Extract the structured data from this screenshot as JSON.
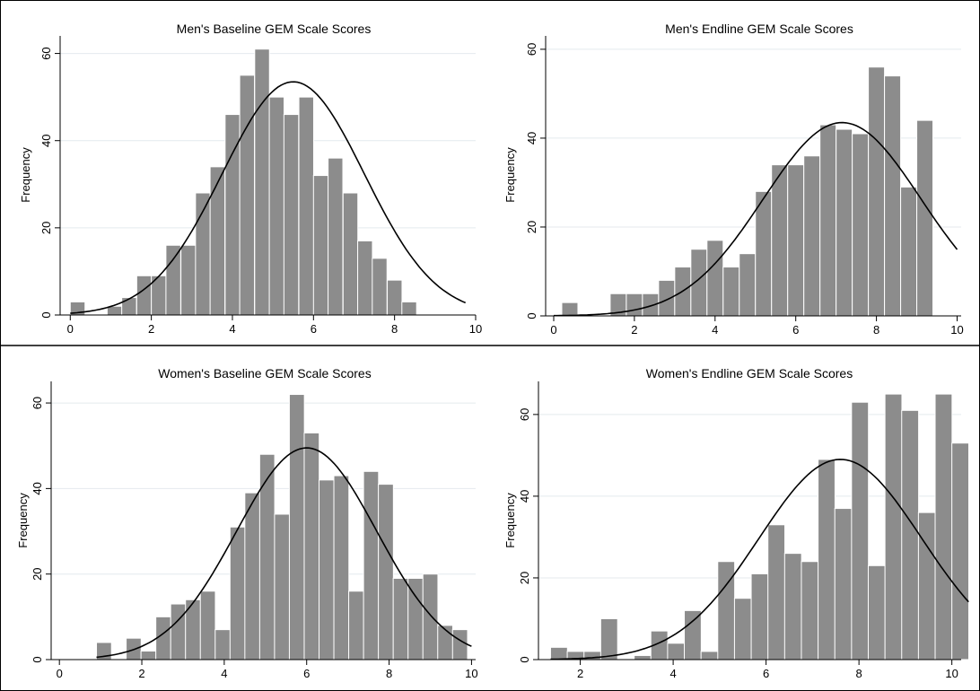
{
  "chart_data": [
    {
      "type": "bar",
      "title": "Men's Baseline GEM Scale Scores",
      "ylabel": "Frequency",
      "xlabel": "",
      "xlim": [
        -0.25,
        10
      ],
      "ylim": [
        0,
        63
      ],
      "xticks": [
        0,
        2,
        4,
        6,
        8,
        10
      ],
      "yticks": [
        0,
        20,
        40,
        60
      ],
      "bin_width": 0.3636,
      "bins": [
        {
          "x0": 0.0,
          "y": 3
        },
        {
          "x0": 0.36,
          "y": 0
        },
        {
          "x0": 0.73,
          "y": 0
        },
        {
          "x0": 0.91,
          "y": 2
        },
        {
          "x0": 1.27,
          "y": 4
        },
        {
          "x0": 1.64,
          "y": 9
        },
        {
          "x0": 2.0,
          "y": 9
        },
        {
          "x0": 2.36,
          "y": 16
        },
        {
          "x0": 2.73,
          "y": 16
        },
        {
          "x0": 3.09,
          "y": 28
        },
        {
          "x0": 3.45,
          "y": 34
        },
        {
          "x0": 3.82,
          "y": 46
        },
        {
          "x0": 4.18,
          "y": 55
        },
        {
          "x0": 4.55,
          "y": 61
        },
        {
          "x0": 4.91,
          "y": 50
        },
        {
          "x0": 5.27,
          "y": 46
        },
        {
          "x0": 5.64,
          "y": 50
        },
        {
          "x0": 6.0,
          "y": 32
        },
        {
          "x0": 6.36,
          "y": 36
        },
        {
          "x0": 6.73,
          "y": 28
        },
        {
          "x0": 7.09,
          "y": 17
        },
        {
          "x0": 7.45,
          "y": 13
        },
        {
          "x0": 7.82,
          "y": 8
        },
        {
          "x0": 8.18,
          "y": 3
        }
      ],
      "normal_curve": {
        "mean": 5.5,
        "sd": 1.75,
        "peak": 53.5,
        "x_range": [
          0,
          9.75
        ]
      }
    },
    {
      "type": "bar",
      "title": "Men's Endline GEM Scale Scores",
      "ylabel": "Frequency",
      "xlabel": "",
      "xlim": [
        -0.2,
        10.1
      ],
      "ylim": [
        0,
        62
      ],
      "xticks": [
        0,
        2,
        4,
        6,
        8,
        10
      ],
      "yticks": [
        0,
        20,
        40,
        60
      ],
      "bin_width": 0.4,
      "bins": [
        {
          "x0": 0.2,
          "y": 3
        },
        {
          "x0": 0.6,
          "y": 0
        },
        {
          "x0": 1.0,
          "y": 0
        },
        {
          "x0": 1.4,
          "y": 5
        },
        {
          "x0": 1.8,
          "y": 5
        },
        {
          "x0": 2.2,
          "y": 5
        },
        {
          "x0": 2.6,
          "y": 8
        },
        {
          "x0": 3.0,
          "y": 11
        },
        {
          "x0": 3.4,
          "y": 15
        },
        {
          "x0": 3.8,
          "y": 17
        },
        {
          "x0": 4.2,
          "y": 11
        },
        {
          "x0": 4.6,
          "y": 14
        },
        {
          "x0": 5.0,
          "y": 28
        },
        {
          "x0": 5.4,
          "y": 34
        },
        {
          "x0": 5.8,
          "y": 34
        },
        {
          "x0": 6.2,
          "y": 36
        },
        {
          "x0": 6.6,
          "y": 43
        },
        {
          "x0": 7.0,
          "y": 42
        },
        {
          "x0": 7.4,
          "y": 41
        },
        {
          "x0": 7.8,
          "y": 56
        },
        {
          "x0": 8.2,
          "y": 54
        },
        {
          "x0": 8.6,
          "y": 29
        },
        {
          "x0": 9.0,
          "y": 44
        }
      ],
      "normal_curve": {
        "mean": 7.15,
        "sd": 1.95,
        "peak": 43.5,
        "x_range": [
          0,
          10
        ]
      }
    },
    {
      "type": "bar",
      "title": "Women's Baseline GEM Scale Scores",
      "ylabel": "Frequency",
      "xlabel": "",
      "xlim": [
        -0.2,
        10.1
      ],
      "ylim": [
        0,
        64
      ],
      "xticks": [
        0,
        2,
        4,
        6,
        8,
        10
      ],
      "yticks": [
        0,
        20,
        40,
        60
      ],
      "bin_width": 0.364,
      "bins": [
        {
          "x0": 0.9,
          "y": 4
        },
        {
          "x0": 1.26,
          "y": 0
        },
        {
          "x0": 1.62,
          "y": 5
        },
        {
          "x0": 1.98,
          "y": 2
        },
        {
          "x0": 2.34,
          "y": 10
        },
        {
          "x0": 2.7,
          "y": 13
        },
        {
          "x0": 3.06,
          "y": 14
        },
        {
          "x0": 3.42,
          "y": 16
        },
        {
          "x0": 3.78,
          "y": 7
        },
        {
          "x0": 4.14,
          "y": 31
        },
        {
          "x0": 4.5,
          "y": 39
        },
        {
          "x0": 4.86,
          "y": 48
        },
        {
          "x0": 5.22,
          "y": 34
        },
        {
          "x0": 5.58,
          "y": 62
        },
        {
          "x0": 5.94,
          "y": 53
        },
        {
          "x0": 6.3,
          "y": 42
        },
        {
          "x0": 6.66,
          "y": 43
        },
        {
          "x0": 7.02,
          "y": 16
        },
        {
          "x0": 7.38,
          "y": 44
        },
        {
          "x0": 7.74,
          "y": 41
        },
        {
          "x0": 8.1,
          "y": 19
        },
        {
          "x0": 8.46,
          "y": 19
        },
        {
          "x0": 8.82,
          "y": 20
        },
        {
          "x0": 9.18,
          "y": 8
        },
        {
          "x0": 9.54,
          "y": 7
        }
      ],
      "normal_curve": {
        "mean": 6.0,
        "sd": 1.7,
        "peak": 49.5,
        "x_range": [
          0.9,
          10
        ]
      }
    },
    {
      "type": "bar",
      "title": "Women's Endline GEM Scale Scores",
      "ylabel": "Frequency",
      "xlabel": "",
      "xlim": [
        1.1,
        10.2
      ],
      "ylim": [
        0,
        67
      ],
      "xticks": [
        2,
        4,
        6,
        8,
        10
      ],
      "yticks": [
        0,
        20,
        40,
        60
      ],
      "bin_width": 0.364,
      "bins": [
        {
          "x0": 1.36,
          "y": 3
        },
        {
          "x0": 1.72,
          "y": 2
        },
        {
          "x0": 2.08,
          "y": 2
        },
        {
          "x0": 2.44,
          "y": 10
        },
        {
          "x0": 2.8,
          "y": 0
        },
        {
          "x0": 3.16,
          "y": 1
        },
        {
          "x0": 3.52,
          "y": 7
        },
        {
          "x0": 3.88,
          "y": 4
        },
        {
          "x0": 4.24,
          "y": 12
        },
        {
          "x0": 4.6,
          "y": 2
        },
        {
          "x0": 4.96,
          "y": 24
        },
        {
          "x0": 5.32,
          "y": 15
        },
        {
          "x0": 5.68,
          "y": 21
        },
        {
          "x0": 6.04,
          "y": 33
        },
        {
          "x0": 6.4,
          "y": 26
        },
        {
          "x0": 6.76,
          "y": 24
        },
        {
          "x0": 7.12,
          "y": 49
        },
        {
          "x0": 7.48,
          "y": 37
        },
        {
          "x0": 7.84,
          "y": 63
        },
        {
          "x0": 8.2,
          "y": 23
        },
        {
          "x0": 8.56,
          "y": 65
        },
        {
          "x0": 8.92,
          "y": 61
        },
        {
          "x0": 9.28,
          "y": 36
        },
        {
          "x0": 9.64,
          "y": 65
        },
        {
          "x0": 10.0,
          "y": 53
        }
      ],
      "normal_curve": {
        "mean": 7.6,
        "sd": 1.75,
        "peak": 49,
        "x_range": [
          1.36,
          10.36
        ]
      }
    }
  ]
}
